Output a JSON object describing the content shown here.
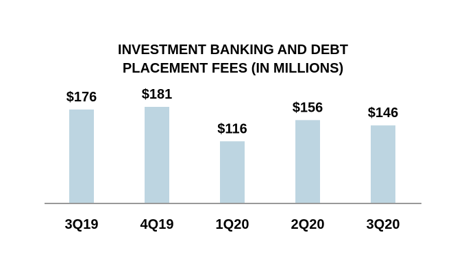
{
  "chart_data": {
    "type": "bar",
    "title": "INVESTMENT BANKING AND DEBT PLACEMENT FEES (IN MILLIONS)",
    "categories": [
      "3Q19",
      "4Q19",
      "1Q20",
      "2Q20",
      "3Q20"
    ],
    "values": [
      176,
      181,
      116,
      156,
      146
    ],
    "value_labels": [
      "$176",
      "$181",
      "$116",
      "$156",
      "$146"
    ],
    "color": "#bdd5e1"
  }
}
